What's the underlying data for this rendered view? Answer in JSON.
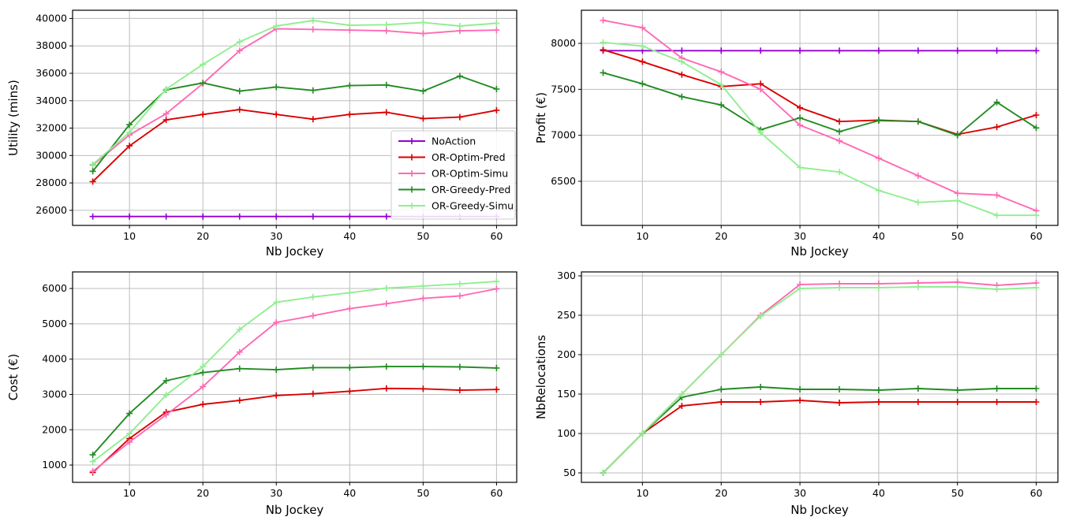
{
  "figure": {
    "background": "#ffffff",
    "grid_color": "#bdbdbd",
    "spine_color": "#000000",
    "x_axis_label": "Nb Jockey",
    "series_colors": {
      "NoAction": "#9400d3",
      "OR-Optim-Pred": "#da0000",
      "OR-Optim-Simu": "#ff69b4",
      "OR-Greedy-Pred": "#228b22",
      "OR-Greedy-Simu": "#90ee90"
    },
    "legend": {
      "location": "lower-right-of-first-chart",
      "entries": [
        "NoAction",
        "OR-Optim-Pred",
        "OR-Optim-Simu",
        "OR-Greedy-Pred",
        "OR-Greedy-Simu"
      ]
    }
  },
  "chart_data": [
    {
      "type": "line",
      "title": "",
      "xlabel": "Nb Jockey",
      "ylabel": "Utility (mins)",
      "x": [
        5,
        10,
        15,
        20,
        25,
        30,
        35,
        40,
        45,
        50,
        55,
        60
      ],
      "xticks": [
        10,
        20,
        30,
        40,
        50,
        60
      ],
      "xlim": [
        2.25,
        62.75
      ],
      "yticks": [
        26000,
        28000,
        30000,
        32000,
        34000,
        36000,
        38000,
        40000
      ],
      "ylim": [
        24900,
        40600
      ],
      "grid": true,
      "legend_here": true,
      "series": [
        {
          "name": "NoAction",
          "values": [
            25550,
            25550,
            25550,
            25550,
            25550,
            25550,
            25550,
            25550,
            25550,
            25550,
            25550,
            25550
          ]
        },
        {
          "name": "OR-Optim-Pred",
          "values": [
            28100,
            30700,
            32600,
            33000,
            33350,
            33000,
            32650,
            33000,
            33150,
            32700,
            32800,
            33300
          ]
        },
        {
          "name": "OR-Optim-Simu",
          "values": [
            29300,
            31500,
            33050,
            35250,
            37650,
            39250,
            39200,
            39150,
            39100,
            38900,
            39100,
            39150
          ]
        },
        {
          "name": "OR-Greedy-Pred",
          "values": [
            28850,
            32250,
            34800,
            35300,
            34700,
            35000,
            34750,
            35100,
            35150,
            34700,
            35800,
            34850
          ]
        },
        {
          "name": "OR-Greedy-Simu",
          "values": [
            29350,
            31700,
            34850,
            36650,
            38300,
            39450,
            39850,
            39500,
            39550,
            39700,
            39450,
            39650
          ]
        }
      ]
    },
    {
      "type": "line",
      "title": "",
      "xlabel": "Nb Jockey",
      "ylabel": "Profit (€)",
      "x": [
        5,
        10,
        15,
        20,
        25,
        30,
        35,
        40,
        45,
        50,
        55,
        60
      ],
      "xticks": [
        10,
        20,
        30,
        40,
        50,
        60
      ],
      "xlim": [
        2.25,
        62.75
      ],
      "yticks": [
        6500,
        7000,
        7500,
        8000
      ],
      "ylim": [
        6020,
        8360
      ],
      "grid": true,
      "legend_here": false,
      "series": [
        {
          "name": "NoAction",
          "values": [
            7920,
            7920,
            7920,
            7920,
            7920,
            7920,
            7920,
            7920,
            7920,
            7920,
            7920,
            7920
          ]
        },
        {
          "name": "OR-Optim-Pred",
          "values": [
            7930,
            7800,
            7660,
            7530,
            7560,
            7300,
            7150,
            7165,
            7150,
            7010,
            7090,
            7220
          ]
        },
        {
          "name": "OR-Optim-Simu",
          "values": [
            8250,
            8170,
            7840,
            7690,
            7500,
            7110,
            6940,
            6750,
            6560,
            6370,
            6350,
            6180
          ]
        },
        {
          "name": "OR-Greedy-Pred",
          "values": [
            7680,
            7560,
            7420,
            7330,
            7060,
            7190,
            7040,
            7160,
            7150,
            7000,
            7360,
            7080
          ]
        },
        {
          "name": "OR-Greedy-Simu",
          "values": [
            8010,
            7970,
            7800,
            7550,
            7030,
            6650,
            6600,
            6400,
            6270,
            6290,
            6130,
            6130
          ]
        }
      ]
    },
    {
      "type": "line",
      "title": "",
      "xlabel": "Nb Jockey",
      "ylabel": "Cost (€)",
      "x": [
        5,
        10,
        15,
        20,
        25,
        30,
        35,
        40,
        45,
        50,
        55,
        60
      ],
      "xticks": [
        10,
        20,
        30,
        40,
        50,
        60
      ],
      "xlim": [
        2.25,
        62.75
      ],
      "yticks": [
        1000,
        2000,
        3000,
        4000,
        5000,
        6000
      ],
      "ylim": [
        510,
        6470
      ],
      "grid": true,
      "legend_here": false,
      "series": [
        {
          "name": "OR-Optim-Pred",
          "values": [
            790,
            1750,
            2500,
            2720,
            2830,
            2970,
            3020,
            3090,
            3170,
            3160,
            3120,
            3140
          ]
        },
        {
          "name": "OR-Optim-Simu",
          "values": [
            820,
            1650,
            2420,
            3220,
            4200,
            5040,
            5230,
            5430,
            5570,
            5720,
            5790,
            5990
          ]
        },
        {
          "name": "OR-Greedy-Pred",
          "values": [
            1290,
            2460,
            3390,
            3620,
            3730,
            3700,
            3760,
            3760,
            3790,
            3790,
            3780,
            3750
          ]
        },
        {
          "name": "OR-Greedy-Simu",
          "values": [
            1100,
            1890,
            2980,
            3790,
            4840,
            5610,
            5760,
            5880,
            6010,
            6070,
            6130,
            6200
          ]
        }
      ]
    },
    {
      "type": "line",
      "title": "",
      "xlabel": "Nb Jockey",
      "ylabel": "NbRelocations",
      "x": [
        5,
        10,
        15,
        20,
        25,
        30,
        35,
        40,
        45,
        50,
        55,
        60
      ],
      "xticks": [
        10,
        20,
        30,
        40,
        50,
        60
      ],
      "xlim": [
        2.25,
        62.75
      ],
      "yticks": [
        50,
        100,
        150,
        200,
        250,
        300
      ],
      "ylim": [
        38,
        305
      ],
      "grid": true,
      "legend_here": false,
      "series": [
        {
          "name": "OR-Optim-Pred",
          "values": [
            50,
            100,
            135,
            140,
            140,
            142,
            139,
            140,
            140,
            140,
            140,
            140
          ]
        },
        {
          "name": "OR-Optim-Simu",
          "values": [
            50,
            100,
            150,
            200,
            250,
            289,
            290,
            290,
            291,
            292,
            288,
            291
          ]
        },
        {
          "name": "OR-Greedy-Pred",
          "values": [
            50,
            100,
            146,
            156,
            159,
            156,
            156,
            155,
            157,
            155,
            157,
            157
          ]
        },
        {
          "name": "OR-Greedy-Simu",
          "values": [
            50,
            100,
            150,
            200,
            249,
            284,
            285,
            285,
            286,
            286,
            283,
            285
          ]
        }
      ]
    }
  ]
}
